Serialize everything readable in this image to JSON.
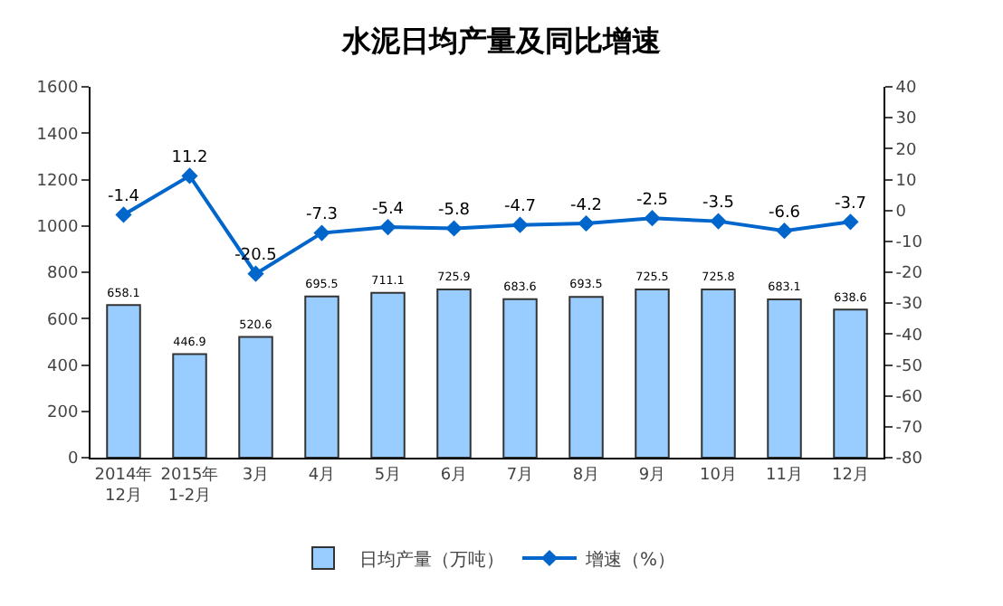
{
  "chart_data": {
    "type": "bar",
    "title": "水泥日均产量及同比增速",
    "categories": [
      "2014年\n12月",
      "2015年\n1-2月",
      "3月",
      "4月",
      "5月",
      "6月",
      "7月",
      "8月",
      "9月",
      "10月",
      "11月",
      "12月"
    ],
    "series": [
      {
        "name": "日均产量（万吨）",
        "color": "#99ccff",
        "values": [
          658.1,
          446.9,
          520.6,
          695.5,
          711.1,
          725.9,
          683.6,
          693.5,
          725.5,
          725.8,
          683.1,
          638.6
        ]
      },
      {
        "name": "增速（%）",
        "type": "line",
        "axis": "y2",
        "color": "#0066cc",
        "marker": "diamond",
        "values": [
          -1.4,
          11.2,
          -20.5,
          -7.3,
          -5.4,
          -5.8,
          -4.7,
          -4.2,
          -2.5,
          -3.5,
          -6.6,
          -3.7
        ]
      }
    ],
    "ylim": [
      0,
      1600
    ],
    "yticks": [
      0,
      200,
      400,
      600,
      800,
      1000,
      1200,
      1400,
      1600
    ],
    "y2lim": [
      -80,
      40
    ],
    "y2ticks": [
      -80,
      -70,
      -60,
      -50,
      -40,
      -30,
      -20,
      -10,
      0,
      10,
      20,
      30,
      40
    ],
    "data_labels": true,
    "grid": false,
    "legend": "bottom"
  }
}
